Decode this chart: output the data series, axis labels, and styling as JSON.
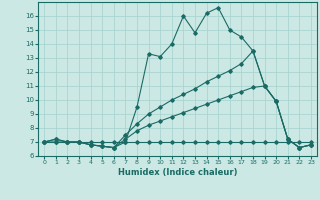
{
  "xlabel": "Humidex (Indice chaleur)",
  "bg_color": "#cce8e4",
  "grid_color": "#aad4d0",
  "line_color": "#1a6b65",
  "xlim": [
    -0.5,
    23.5
  ],
  "ylim": [
    6,
    17
  ],
  "yticks": [
    6,
    7,
    8,
    9,
    10,
    11,
    12,
    13,
    14,
    15,
    16
  ],
  "xticks": [
    0,
    1,
    2,
    3,
    4,
    5,
    6,
    7,
    8,
    9,
    10,
    11,
    12,
    13,
    14,
    15,
    16,
    17,
    18,
    19,
    20,
    21,
    22,
    23
  ],
  "lines": [
    [
      7.0,
      7.2,
      7.0,
      7.0,
      6.8,
      6.7,
      6.6,
      7.0,
      9.5,
      13.3,
      13.1,
      14.0,
      16.0,
      14.8,
      16.2,
      16.6,
      15.0,
      14.5,
      13.5,
      11.0,
      9.9,
      7.2,
      6.6,
      6.8
    ],
    [
      7.0,
      7.2,
      7.0,
      7.0,
      6.8,
      6.7,
      6.6,
      7.5,
      8.3,
      9.0,
      9.5,
      10.0,
      10.4,
      10.8,
      11.3,
      11.7,
      12.1,
      12.6,
      13.5,
      11.0,
      9.9,
      7.2,
      6.6,
      6.8
    ],
    [
      7.0,
      7.0,
      7.0,
      7.0,
      6.8,
      6.7,
      6.6,
      7.2,
      7.8,
      8.2,
      8.5,
      8.8,
      9.1,
      9.4,
      9.7,
      10.0,
      10.3,
      10.6,
      10.9,
      11.0,
      9.9,
      7.2,
      6.6,
      6.8
    ],
    [
      7.0,
      7.0,
      7.0,
      7.0,
      7.0,
      7.0,
      7.0,
      7.0,
      7.0,
      7.0,
      7.0,
      7.0,
      7.0,
      7.0,
      7.0,
      7.0,
      7.0,
      7.0,
      7.0,
      7.0,
      7.0,
      7.0,
      7.0,
      7.0
    ]
  ]
}
